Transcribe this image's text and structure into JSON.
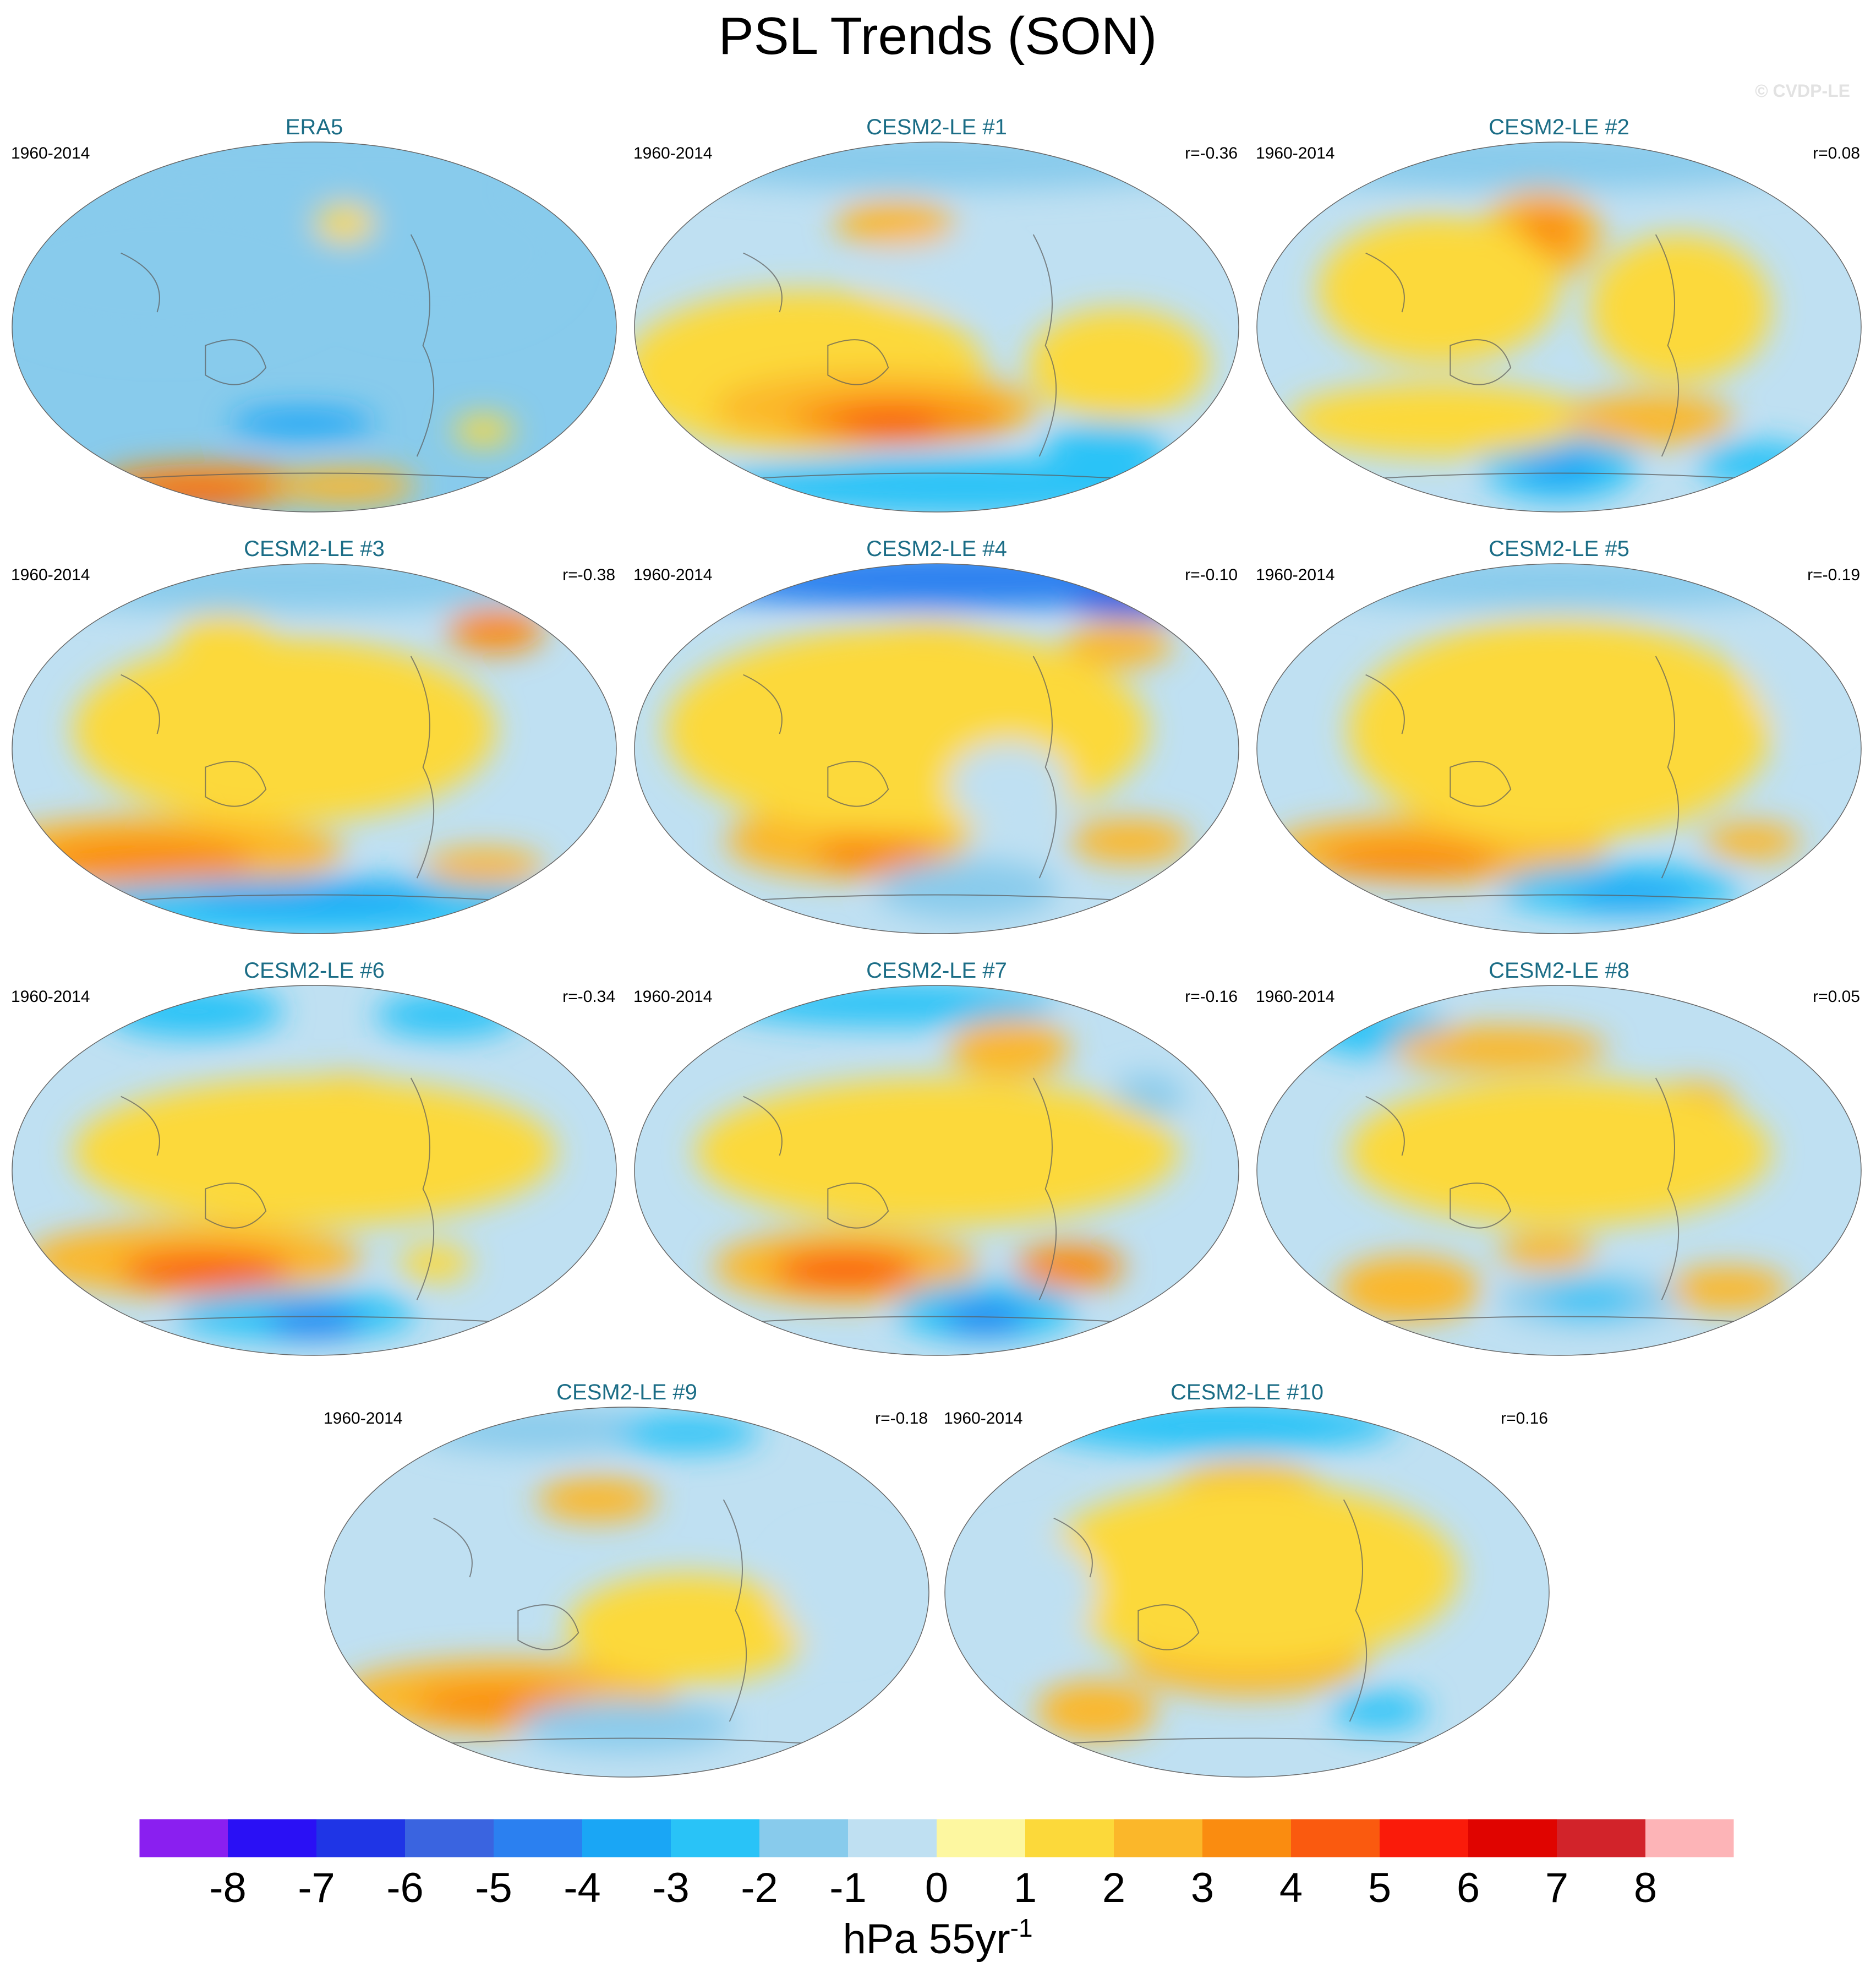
{
  "title": "PSL Trends (SON)",
  "watermark": "© CVDP-LE",
  "period": "1960-2014",
  "panels": [
    {
      "name": "ERA5",
      "r": ""
    },
    {
      "name": "CESM2-LE #1",
      "r": "r=-0.36"
    },
    {
      "name": "CESM2-LE #2",
      "r": "r=0.08"
    },
    {
      "name": "CESM2-LE #3",
      "r": "r=-0.38"
    },
    {
      "name": "CESM2-LE #4",
      "r": "r=-0.10"
    },
    {
      "name": "CESM2-LE #5",
      "r": "r=-0.19"
    },
    {
      "name": "CESM2-LE #6",
      "r": "r=-0.34"
    },
    {
      "name": "CESM2-LE #7",
      "r": "r=-0.16"
    },
    {
      "name": "CESM2-LE #8",
      "r": "r=0.05"
    },
    {
      "name": "CESM2-LE #9",
      "r": "r=-0.18"
    },
    {
      "name": "CESM2-LE #10",
      "r": "r=0.16"
    }
  ],
  "colorbar": {
    "labels": [
      "-8",
      "-7",
      "-6",
      "-5",
      "-4",
      "-3",
      "-2",
      "-1",
      "0",
      "1",
      "2",
      "3",
      "4",
      "5",
      "6",
      "7",
      "8"
    ],
    "colors": [
      "#8a1ff0",
      "#2a10f5",
      "#1f35e6",
      "#3a64e0",
      "#2b80f0",
      "#1aa6f5",
      "#29c3f7",
      "#88cbec",
      "#bfe0f2",
      "#fdf7a0",
      "#fcd93a",
      "#fbb72a",
      "#fa8c10",
      "#fa5a0f",
      "#fa1b0a",
      "#e00400",
      "#d2232a",
      "#fdb4b7"
    ],
    "unit": "hPa 55yr",
    "unit_exponent": "-1"
  },
  "colors": {
    "title_panel": "#1b6d86",
    "coast": "#5a5a5a"
  }
}
